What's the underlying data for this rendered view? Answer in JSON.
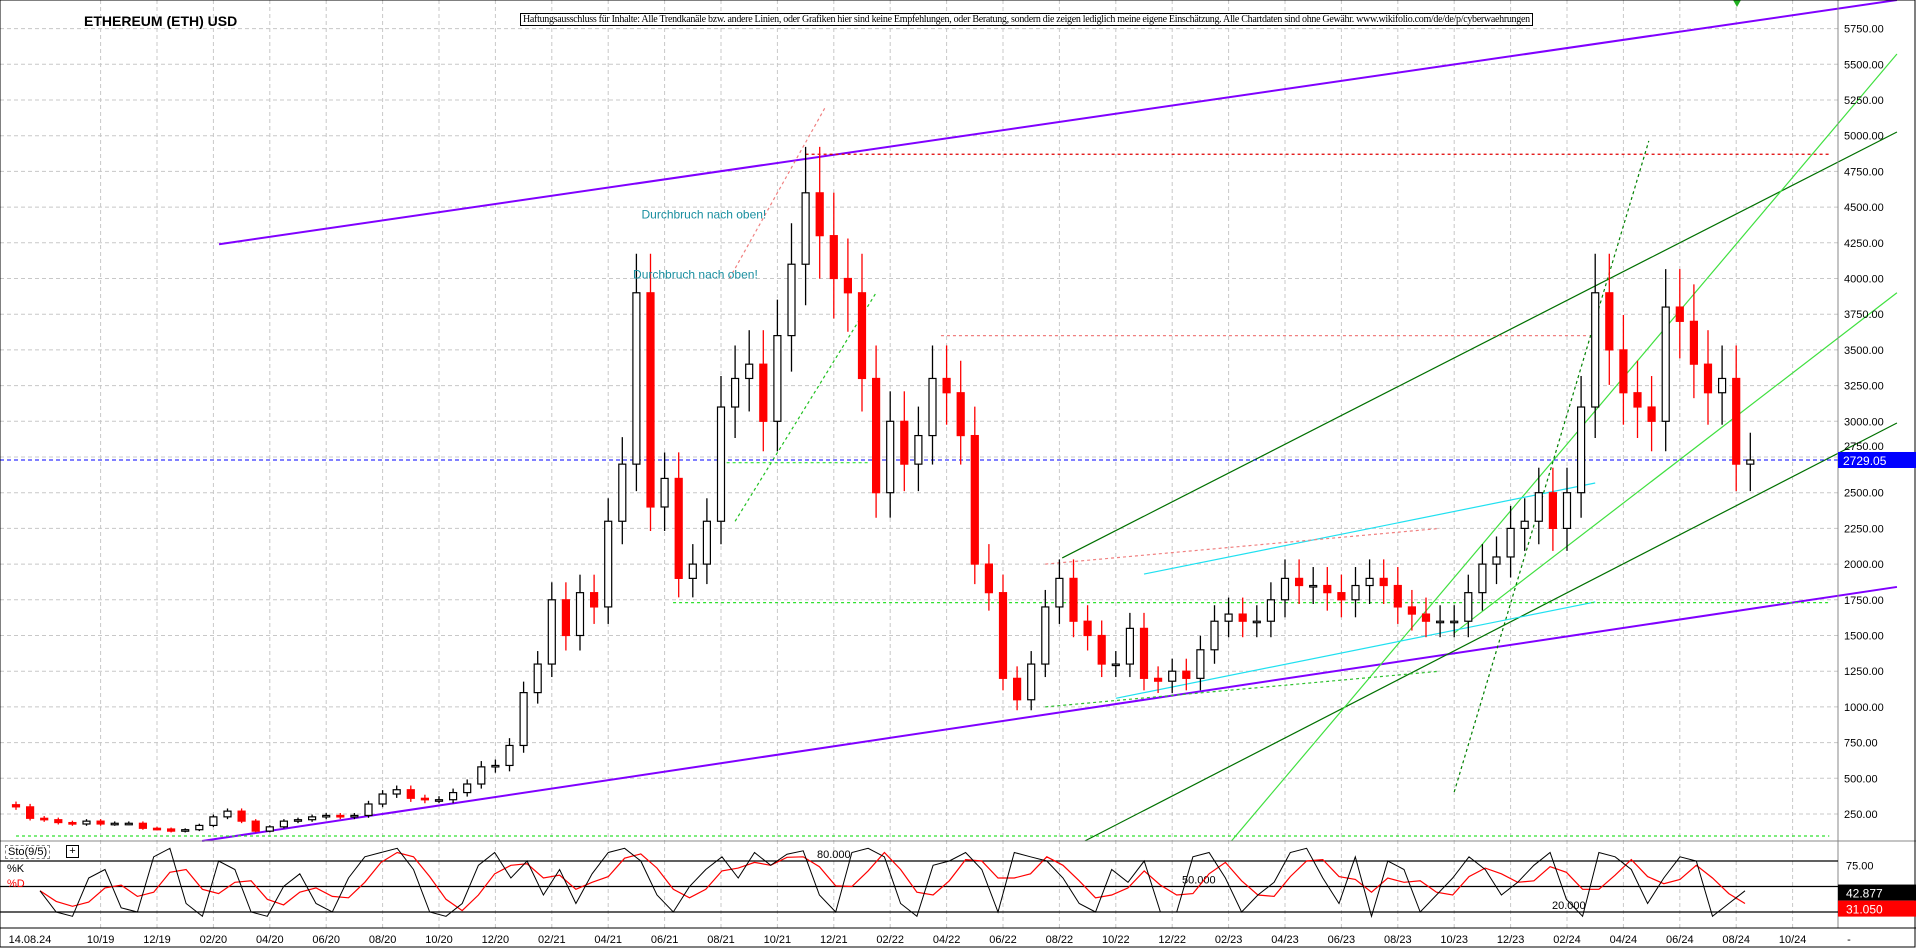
{
  "header": {
    "title": "ETHEREUM (ETH) USD",
    "disclaimer": "Haftungsausschluss für Inhalte: Alle Trendkanäle bzw. andere Linien, oder Grafiken hier sind keine Empfehlungen, oder Beratung, sondern die zeigen lediglich meine eigene Einschätzung. Alle Chartdaten sind ohne Gewähr.  www.wikifolio.com/de/de/p/cyberwaehrungen"
  },
  "indicator": {
    "name": "Sto(9/5)",
    "plus": "+",
    "k_label": "%K",
    "d_label": "%D",
    "level_80": "80.000",
    "level_50": "50.000",
    "level_20": "20.000",
    "axis_75": "75.00",
    "k_value": "42.877",
    "d_value": "31.050"
  },
  "chart_data": {
    "type": "candlestick",
    "title": "ETHEREUM (ETH) USD",
    "x_unit": "half-months since 07/2019",
    "ylim": [
      0,
      5950
    ],
    "yticks": [
      250,
      500,
      750,
      1000,
      1250,
      1500,
      1750,
      2000,
      2250,
      2500,
      2750,
      3000,
      3250,
      3500,
      3750,
      4000,
      4250,
      4500,
      4750,
      5000,
      5250,
      5500,
      5750
    ],
    "ytick_labels": [
      "250.00",
      "500.00",
      "750.00",
      "1000.00",
      "1250.00",
      "1500.00",
      "1750.00",
      "2000.00",
      "2250.00",
      "2500.00",
      "2750.00",
      "3000.00",
      "3250.00",
      "3500.00",
      "3750.00",
      "4000.00",
      "4250.00",
      "4500.00",
      "4750.00",
      "5000.00",
      "5250.00",
      "5500.00",
      "5750.00"
    ],
    "xtick_labels": [
      "14.08.24",
      "10/19",
      "12/19",
      "02/20",
      "04/20",
      "06/20",
      "08/20",
      "10/20",
      "12/20",
      "02/21",
      "04/21",
      "06/21",
      "08/21",
      "10/21",
      "12/21",
      "02/22",
      "04/22",
      "06/22",
      "08/22",
      "10/22",
      "12/22",
      "02/23",
      "04/23",
      "06/23",
      "08/23",
      "10/23",
      "12/23",
      "02/24",
      "04/24",
      "06/24",
      "08/24",
      "10/24",
      "-"
    ],
    "last_price": "2729.05",
    "last_price_value": 2729.05,
    "grid": true,
    "closes": [
      300,
      220,
      210,
      190,
      180,
      200,
      180,
      185,
      185,
      150,
      145,
      130,
      140,
      170,
      230,
      270,
      200,
      130,
      160,
      200,
      210,
      230,
      240,
      230,
      240,
      320,
      390,
      420,
      360,
      350,
      350,
      400,
      460,
      580,
      590,
      730,
      1100,
      1300,
      1750,
      1500,
      1800,
      1700,
      2300,
      2700,
      3900,
      2400,
      2600,
      1900,
      2000,
      2300,
      3100,
      3300,
      3400,
      3000,
      3600,
      4100,
      4600,
      4300,
      4000,
      3900,
      3300,
      2500,
      3000,
      2700,
      2900,
      3300,
      3200,
      2900,
      2000,
      1800,
      1200,
      1050,
      1300,
      1700,
      1900,
      1600,
      1500,
      1300,
      1300,
      1550,
      1200,
      1180,
      1250,
      1200,
      1400,
      1600,
      1650,
      1600,
      1600,
      1750,
      1900,
      1850,
      1850,
      1800,
      1750,
      1850,
      1900,
      1850,
      1700,
      1650,
      1600,
      1600,
      1600,
      1800,
      2000,
      2050,
      2250,
      2300,
      2500,
      2250,
      2500,
      3100,
      3900,
      3500,
      3200,
      3100,
      3000,
      3800,
      3700,
      3400,
      3200,
      3300,
      2700,
      2729
    ],
    "annotations": [
      {
        "text": "Durchbruch nach oben!",
        "t": 27.5,
        "price": 4420
      },
      {
        "text": "Durchbruch nach oben!",
        "t": 27.2,
        "price": 4000
      }
    ],
    "trendlines": [
      {
        "name": "upper-channel",
        "color": "#8000ff",
        "dash": false,
        "t1": 7.2,
        "p1": 4240,
        "t2": 66.7,
        "p2": 5950
      },
      {
        "name": "lower-channel",
        "color": "#8000ff",
        "dash": false,
        "t1": 6.6,
        "p1": 61,
        "t2": 66.7,
        "p2": 1840
      },
      {
        "name": "green-channel-upper",
        "color": "#007000",
        "dash": false,
        "t1": 37.1,
        "p1": 2043,
        "t2": 66.7,
        "p2": 5026
      },
      {
        "name": "green-channel-lower",
        "color": "#007000",
        "dash": false,
        "t1": 37.9,
        "p1": 61,
        "t2": 66.7,
        "p2": 2988
      },
      {
        "name": "light-green-1",
        "color": "#40e040",
        "dash": false,
        "t1": 43.1,
        "p1": 61,
        "t2": 66.7,
        "p2": 5572
      },
      {
        "name": "light-green-2",
        "color": "#40e040",
        "dash": false,
        "t1": 51,
        "p1": 1517,
        "t2": 66.7,
        "p2": 3900
      },
      {
        "name": "green-dotted-steep",
        "color": "#008000",
        "dash": true,
        "t1": 51,
        "p1": 404,
        "t2": 57.9,
        "p2": 4963
      },
      {
        "name": "green-dotted-2021",
        "color": "#20c020",
        "dash": true,
        "t1": 25.5,
        "p1": 2300,
        "t2": 30.5,
        "p2": 3900
      },
      {
        "name": "cyan-1",
        "color": "#20e0f0",
        "dash": false,
        "t1": 40,
        "p1": 1930,
        "t2": 56,
        "p2": 2568
      },
      {
        "name": "cyan-2",
        "color": "#20e0f0",
        "dash": false,
        "t1": 39,
        "p1": 1060,
        "t2": 56,
        "p2": 1735
      },
      {
        "name": "red-ath-level",
        "color": "#e00000",
        "dash": true,
        "t1": 28,
        "p1": 4870,
        "t2": 64.3,
        "p2": 4870
      },
      {
        "name": "red-3600-level",
        "color": "#f08080",
        "dash": true,
        "t1": 32.8,
        "p1": 3600,
        "t2": 55.8,
        "p2": 3600
      },
      {
        "name": "red-dotted-rise",
        "color": "#f08080",
        "dash": true,
        "t1": 25.3,
        "p1": 4000,
        "t2": 28.7,
        "p2": 5200
      },
      {
        "name": "red-2000-level",
        "color": "#f08080",
        "dash": true,
        "t1": 36.5,
        "p1": 2000,
        "t2": 50.5,
        "p2": 2250
      },
      {
        "name": "green-1730-level",
        "color": "#30e030",
        "dash": true,
        "t1": 23.3,
        "p1": 1730,
        "t2": 64.3,
        "p2": 1730
      },
      {
        "name": "green-2710-level",
        "color": "#30e030",
        "dash": true,
        "t1": 25.2,
        "p1": 2710,
        "t2": 30.2,
        "p2": 2710
      },
      {
        "name": "green-100-level",
        "color": "#30e030",
        "dash": true,
        "t1": 0,
        "p1": 96,
        "t2": 64.3,
        "p2": 96
      },
      {
        "name": "green-1000-rise",
        "color": "#30c030",
        "dash": true,
        "t1": 36.5,
        "p1": 1000,
        "t2": 50.5,
        "p2": 1250
      }
    ],
    "stochastic": {
      "levels": [
        80,
        50,
        20
      ],
      "k": [
        45,
        20,
        15,
        60,
        70,
        25,
        20,
        85,
        95,
        30,
        15,
        80,
        70,
        20,
        15,
        50,
        65,
        30,
        20,
        60,
        85,
        90,
        95,
        70,
        20,
        15,
        30,
        75,
        90,
        60,
        80,
        40,
        70,
        30,
        65,
        90,
        95,
        80,
        40,
        20,
        50,
        70,
        85,
        60,
        90,
        75,
        88,
        92,
        40,
        20,
        90,
        95,
        85,
        30,
        15,
        75,
        80,
        90,
        70,
        20,
        90,
        85,
        80,
        60,
        30,
        20,
        70,
        55,
        80,
        20,
        20,
        85,
        90,
        60,
        20,
        40,
        55,
        90,
        95,
        60,
        30,
        85,
        15,
        80,
        70,
        20,
        40,
        60,
        85,
        70,
        40,
        55,
        75,
        90,
        35,
        15,
        90,
        85,
        70,
        30,
        60,
        85,
        80,
        15,
        30,
        45
      ]
    },
    "colors": {
      "up": "#000000",
      "down": "#ff0000",
      "last_price_bg": "#0000ff",
      "k_value_bg": "#000000",
      "d_value_bg": "#ff0000"
    }
  }
}
